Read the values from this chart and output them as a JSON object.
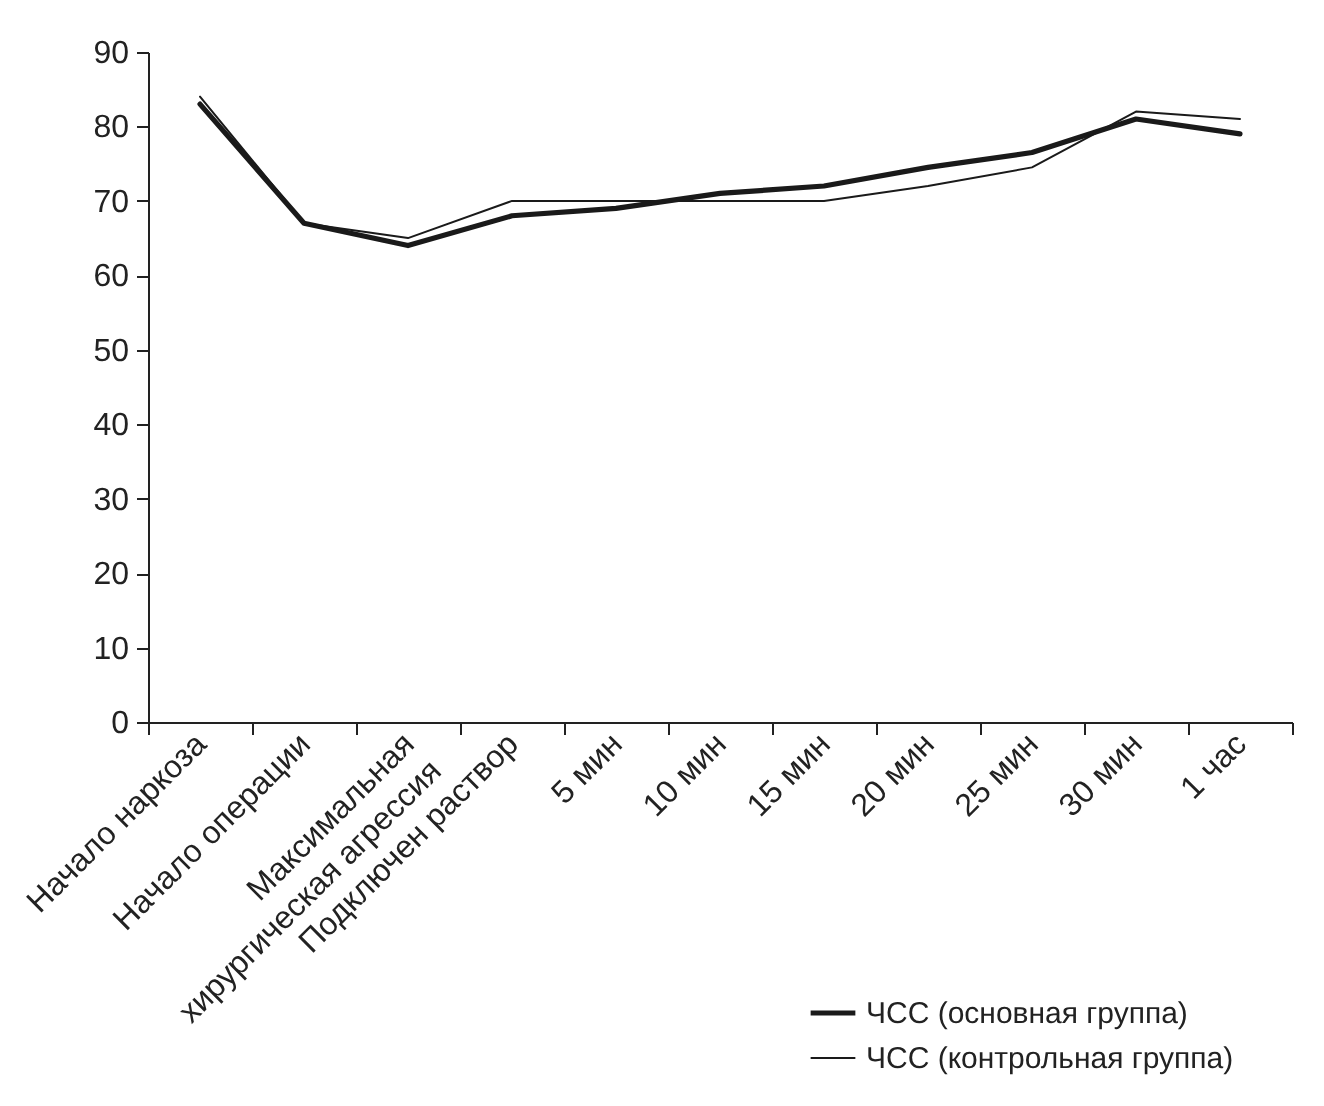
{
  "chart_data": {
    "type": "line",
    "categories": [
      "Начало наркоза",
      "Начало операции",
      "Максимальная\nхирургическая агрессия",
      "Подключен раствор",
      "5 мин",
      "10 мин",
      "15 мин",
      "20 мин",
      "25 мин",
      "30 мин",
      "1 час"
    ],
    "series": [
      {
        "name": "ЧСС (основная группа)",
        "color": "#1a1a1a",
        "values": [
          83,
          67,
          64,
          68,
          69,
          71,
          72,
          74.5,
          76.5,
          81,
          79
        ]
      },
      {
        "name": "ЧСС (контрольная группа)",
        "color": "#1a1a1a",
        "values": [
          84,
          67,
          65,
          70,
          70,
          70,
          70,
          72,
          74.5,
          82,
          81
        ]
      }
    ],
    "ylim": [
      0,
      90
    ],
    "yticks": [
      0,
      10,
      20,
      30,
      40,
      50,
      60,
      70,
      80,
      90
    ],
    "grid": false,
    "legend": "bottom right",
    "marker": "none",
    "line_style": "solid"
  }
}
